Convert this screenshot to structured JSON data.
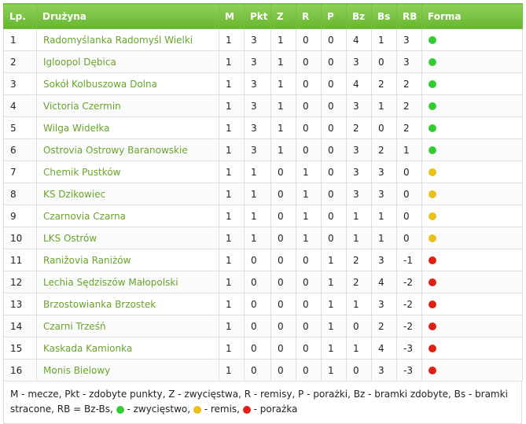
{
  "headers": {
    "pos": "Lp.",
    "team": "Drużyna",
    "m": "M",
    "pkt": "Pkt",
    "z": "Z",
    "r": "R",
    "p": "P",
    "bz": "Bz",
    "bs": "Bs",
    "rb": "RB",
    "forma": "Forma"
  },
  "colors": {
    "win": "#33cc33",
    "draw": "#e8c21a",
    "loss": "#dd2211"
  },
  "rows": [
    {
      "pos": "1",
      "team": "Radomyślanka Radomyśl Wielki",
      "m": "1",
      "pkt": "3",
      "z": "1",
      "r": "0",
      "p": "0",
      "bz": "4",
      "bs": "1",
      "rb": "3",
      "form": "win"
    },
    {
      "pos": "2",
      "team": "Igloopol Dębica",
      "m": "1",
      "pkt": "3",
      "z": "1",
      "r": "0",
      "p": "0",
      "bz": "3",
      "bs": "0",
      "rb": "3",
      "form": "win"
    },
    {
      "pos": "3",
      "team": "Sokół Kolbuszowa Dolna",
      "m": "1",
      "pkt": "3",
      "z": "1",
      "r": "0",
      "p": "0",
      "bz": "4",
      "bs": "2",
      "rb": "2",
      "form": "win"
    },
    {
      "pos": "4",
      "team": "Victoria Czermin",
      "m": "1",
      "pkt": "3",
      "z": "1",
      "r": "0",
      "p": "0",
      "bz": "3",
      "bs": "1",
      "rb": "2",
      "form": "win"
    },
    {
      "pos": "5",
      "team": "Wilga Widełka",
      "m": "1",
      "pkt": "3",
      "z": "1",
      "r": "0",
      "p": "0",
      "bz": "2",
      "bs": "0",
      "rb": "2",
      "form": "win"
    },
    {
      "pos": "6",
      "team": "Ostrovia Ostrowy Baranowskie",
      "m": "1",
      "pkt": "3",
      "z": "1",
      "r": "0",
      "p": "0",
      "bz": "3",
      "bs": "2",
      "rb": "1",
      "form": "win"
    },
    {
      "pos": "7",
      "team": "Chemik Pustków",
      "m": "1",
      "pkt": "1",
      "z": "0",
      "r": "1",
      "p": "0",
      "bz": "3",
      "bs": "3",
      "rb": "0",
      "form": "draw"
    },
    {
      "pos": "8",
      "team": "KS Dzikowiec",
      "m": "1",
      "pkt": "1",
      "z": "0",
      "r": "1",
      "p": "0",
      "bz": "3",
      "bs": "3",
      "rb": "0",
      "form": "draw"
    },
    {
      "pos": "9",
      "team": "Czarnovia Czarna",
      "m": "1",
      "pkt": "1",
      "z": "0",
      "r": "1",
      "p": "0",
      "bz": "1",
      "bs": "1",
      "rb": "0",
      "form": "draw"
    },
    {
      "pos": "10",
      "team": "LKS Ostrów",
      "m": "1",
      "pkt": "1",
      "z": "0",
      "r": "1",
      "p": "0",
      "bz": "1",
      "bs": "1",
      "rb": "0",
      "form": "draw"
    },
    {
      "pos": "11",
      "team": "Ranižovia Raniżów",
      "m": "1",
      "pkt": "0",
      "z": "0",
      "r": "0",
      "p": "1",
      "bz": "2",
      "bs": "3",
      "rb": "-1",
      "form": "loss"
    },
    {
      "pos": "12",
      "team": "Lechia Sędziszów Małopolski",
      "m": "1",
      "pkt": "0",
      "z": "0",
      "r": "0",
      "p": "1",
      "bz": "2",
      "bs": "4",
      "rb": "-2",
      "form": "loss"
    },
    {
      "pos": "13",
      "team": "Brzostowianka Brzostek",
      "m": "1",
      "pkt": "0",
      "z": "0",
      "r": "0",
      "p": "1",
      "bz": "1",
      "bs": "3",
      "rb": "-2",
      "form": "loss"
    },
    {
      "pos": "14",
      "team": "Czarni Trześń",
      "m": "1",
      "pkt": "0",
      "z": "0",
      "r": "0",
      "p": "1",
      "bz": "0",
      "bs": "2",
      "rb": "-2",
      "form": "loss"
    },
    {
      "pos": "15",
      "team": "Kaskada Kamionka",
      "m": "1",
      "pkt": "0",
      "z": "0",
      "r": "0",
      "p": "1",
      "bz": "1",
      "bs": "4",
      "rb": "-3",
      "form": "loss"
    },
    {
      "pos": "16",
      "team": "Monis Bielowy",
      "m": "1",
      "pkt": "0",
      "z": "0",
      "r": "0",
      "p": "1",
      "bz": "0",
      "bs": "3",
      "rb": "-3",
      "form": "loss"
    }
  ],
  "legend": {
    "text": "M - mecze, Pkt - zdobyte punkty, Z - zwycięstwa, R - remisy, P - porażki, Bz - bramki zdobyte, Bs - bramki stracone, RB = Bz-Bs,",
    "win": " - zwycięstwo,",
    "draw": " - remis,",
    "loss": " - porażka"
  }
}
